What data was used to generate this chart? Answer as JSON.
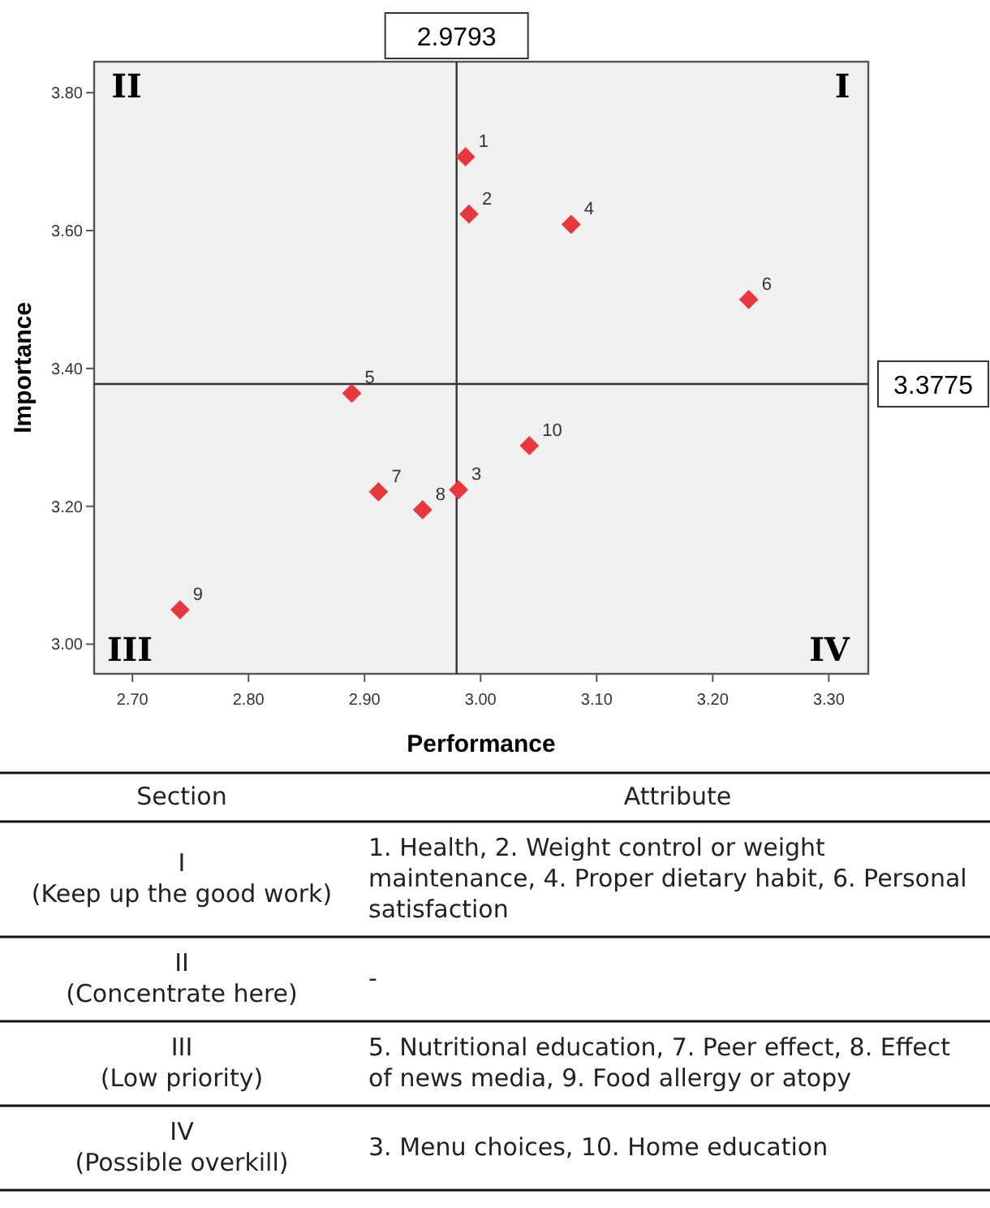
{
  "chart_data": {
    "type": "scatter",
    "xlabel": "Performance",
    "ylabel": "Importance",
    "x": [
      2.987,
      2.99,
      2.981,
      3.078,
      2.889,
      3.231,
      2.912,
      2.95,
      2.741,
      3.042
    ],
    "series": [
      {
        "color": "#e8383d",
        "values": [
          3.707,
          3.624,
          3.224,
          3.609,
          3.364,
          3.5,
          3.221,
          3.195,
          3.05,
          3.288
        ]
      }
    ],
    "marker": "diamond",
    "grid": false,
    "xlim": [
      2.667,
      3.334
    ],
    "ylim": [
      2.957,
      3.845
    ],
    "xticks": [
      {
        "value": 2.7,
        "label": "2.70"
      },
      {
        "value": 2.8,
        "label": "2.80"
      },
      {
        "value": 2.9,
        "label": "2.90"
      },
      {
        "value": 3.0,
        "label": "3.00"
      },
      {
        "value": 3.1,
        "label": "3.10"
      },
      {
        "value": 3.2,
        "label": "3.20"
      },
      {
        "value": 3.3,
        "label": "3.30"
      }
    ],
    "yticks": [
      {
        "value": 3.0,
        "label": "3.00"
      },
      {
        "value": 3.2,
        "label": "3.20"
      },
      {
        "value": 3.4,
        "label": "3.40"
      },
      {
        "value": 3.6,
        "label": "3.60"
      },
      {
        "value": 3.8,
        "label": "3.80"
      }
    ],
    "ref_lines": [
      {
        "axis": "x",
        "value": 2.9793,
        "label": "2.9793"
      },
      {
        "axis": "y",
        "value": 3.3775,
        "label": "3.3775"
      }
    ],
    "annotations": [
      "II",
      "I",
      "III",
      "IV",
      {
        "text": "1",
        "x": 2.987,
        "y": 3.707
      },
      {
        "text": "2",
        "x": 2.99,
        "y": 3.624
      },
      {
        "text": "3",
        "x": 2.981,
        "y": 3.224
      },
      {
        "text": "4",
        "x": 3.078,
        "y": 3.609
      },
      {
        "text": "5",
        "x": 2.889,
        "y": 3.364
      },
      {
        "text": "6",
        "x": 3.231,
        "y": 3.5
      },
      {
        "text": "7",
        "x": 2.912,
        "y": 3.221
      },
      {
        "text": "8",
        "x": 2.95,
        "y": 3.195
      },
      {
        "text": "9",
        "x": 2.741,
        "y": 3.05
      },
      {
        "text": "10",
        "x": 3.042,
        "y": 3.288
      },
      "Section",
      "Attribute",
      "I\n(Keep up the good work)",
      "1. Health, 2. Weight control or weight maintenance, 4. Proper dietary habit, 6. Personal satisfaction",
      "II\n(Concentrate here)",
      "-",
      "III\n(Low priority)",
      "5. Nutritional education, 7. Peer effect, 8. Effect of news media, 9. Food allergy or atopy",
      "IV\n(Possible overkill)",
      "3. Menu choices, 10. Home education"
    ]
  }
}
